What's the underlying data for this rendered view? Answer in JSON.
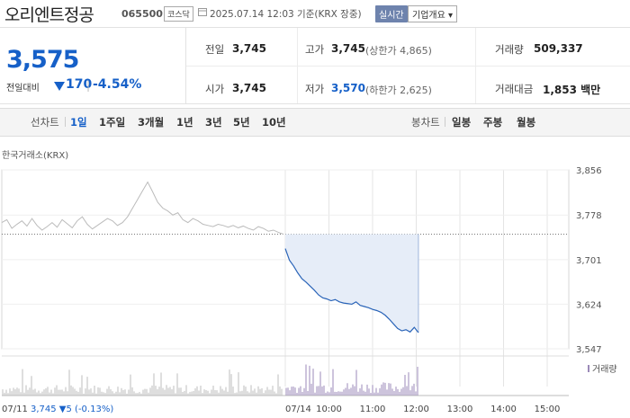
{
  "header": {
    "stock_name": "오리엔트정공",
    "stock_code": "065500",
    "market": "코스닥",
    "datetime": "2025.07.14 12:03 기준(KRX 장중)",
    "realtime_label": "실시간",
    "corp_info_label": "기업개요 ▾"
  },
  "price": {
    "current": "3,575",
    "diff_label": "전일대비",
    "diff_amount": "170",
    "diff_sep": "|",
    "diff_pct": "-4.54%",
    "colors": {
      "down": "#1660c8"
    }
  },
  "quote": {
    "prev_close_label": "전일",
    "prev_close": "3,745",
    "open_label": "시가",
    "open": "3,745",
    "high_label": "고가",
    "high": "3,745",
    "high_limit": "(상한가 4,865)",
    "low_label": "저가",
    "low": "3,570",
    "low_limit": "(하한가 2,625)",
    "volume_label": "거래량",
    "volume": "509,337",
    "amount_label": "거래대금",
    "amount": "1,853 백만"
  },
  "tabs": {
    "line_label": "선차트",
    "line_tabs": [
      "1일",
      "1주일",
      "3개월",
      "1년",
      "3년",
      "5년",
      "10년"
    ],
    "active": "1일",
    "candle_label": "봉차트",
    "candle_tabs": [
      "일봉",
      "주봉",
      "월봉"
    ]
  },
  "chart_data": {
    "type": "line",
    "source_label": "한국거래소(KRX)",
    "y_ticks": [
      "3,856",
      "3,778",
      "3,701",
      "3,624",
      "3,547"
    ],
    "ylim": [
      3547,
      3856
    ],
    "x_ticks": [
      "07/14",
      "10:00",
      "11:00",
      "12:00",
      "13:00",
      "14:00",
      "15:00"
    ],
    "prev_close": 3745,
    "prev_day": {
      "date": "07/11",
      "close": "3,745",
      "change": "▼5 (-0.13%)",
      "values": [
        3765,
        3770,
        3755,
        3762,
        3768,
        3759,
        3772,
        3760,
        3752,
        3758,
        3765,
        3757,
        3770,
        3763,
        3756,
        3768,
        3775,
        3762,
        3754,
        3760,
        3766,
        3772,
        3768,
        3760,
        3765,
        3775,
        3790,
        3805,
        3820,
        3835,
        3818,
        3800,
        3790,
        3785,
        3778,
        3782,
        3770,
        3765,
        3772,
        3768,
        3762,
        3760,
        3758,
        3762,
        3760,
        3757,
        3760,
        3756,
        3759,
        3755,
        3752,
        3758,
        3755,
        3750,
        3752,
        3748,
        3745
      ]
    },
    "today": {
      "date": "07/14",
      "values": [
        3720,
        3700,
        3690,
        3678,
        3668,
        3662,
        3655,
        3648,
        3640,
        3635,
        3633,
        3630,
        3632,
        3628,
        3626,
        3625,
        3624,
        3628,
        3622,
        3620,
        3618,
        3615,
        3613,
        3610,
        3605,
        3598,
        3590,
        3582,
        3578,
        3580,
        3576,
        3584,
        3575
      ]
    },
    "volume_legend": "거래량",
    "colors": {
      "prev": "#bbbbbb",
      "today": "#2a64b8",
      "fill": "#e6edf8",
      "volume_prev": "#bdbdbd",
      "volume_today": "#9b8ab8"
    }
  }
}
